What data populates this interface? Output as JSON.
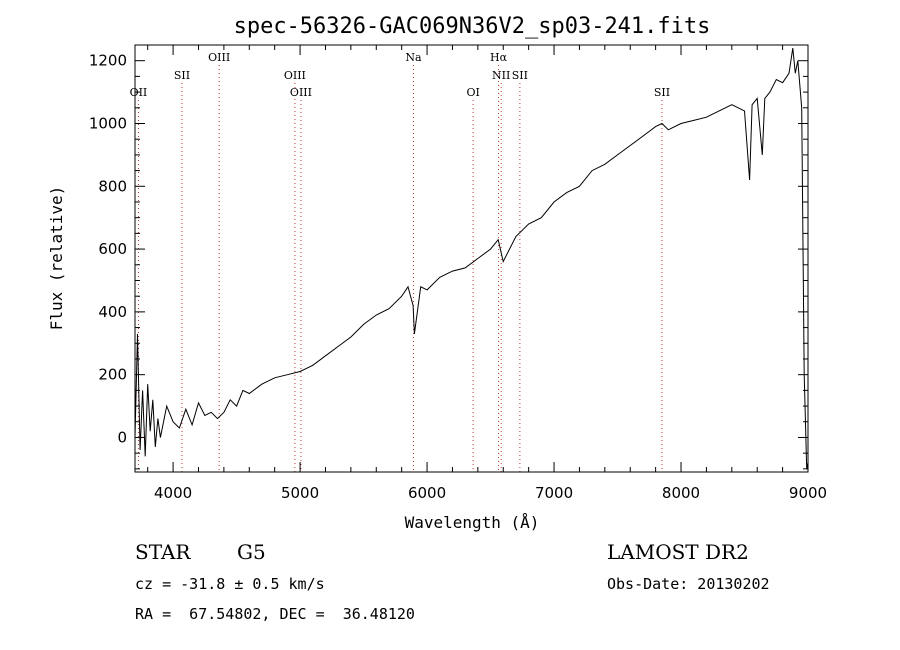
{
  "chart_data": {
    "type": "line",
    "title": "spec-56326-GAC069N36V2_sp03-241.fits",
    "xlabel": "Wavelength (Å)",
    "ylabel": "Flux (relative)",
    "xlim": [
      3700,
      9000
    ],
    "ylim": [
      -110,
      1250
    ],
    "x_ticks": [
      4000,
      5000,
      6000,
      7000,
      8000,
      9000
    ],
    "y_ticks": [
      0,
      200,
      400,
      600,
      800,
      1000,
      1200
    ],
    "grid": false,
    "series": [
      {
        "x": [
          3700,
          3720,
          3740,
          3760,
          3780,
          3800,
          3820,
          3840,
          3860,
          3880,
          3900,
          3950,
          4000,
          4050,
          4100,
          4150,
          4200,
          4250,
          4300,
          4350,
          4400,
          4450,
          4500,
          4550,
          4600,
          4700,
          4800,
          4900,
          5000,
          5100,
          5200,
          5300,
          5400,
          5500,
          5600,
          5700,
          5800,
          5850,
          5890,
          5900,
          5950,
          6000,
          6100,
          6200,
          6300,
          6400,
          6500,
          6560,
          6600,
          6700,
          6800,
          6900,
          7000,
          7100,
          7200,
          7300,
          7400,
          7500,
          7600,
          7700,
          7800,
          7850,
          7900,
          8000,
          8100,
          8200,
          8300,
          8400,
          8450,
          8500,
          8540,
          8560,
          8600,
          8640,
          8660,
          8700,
          8750,
          8800,
          8850,
          8880,
          8900,
          8920,
          8950,
          8970,
          8990,
          9000
        ],
        "y": [
          0,
          330,
          -40,
          150,
          -60,
          170,
          20,
          120,
          -30,
          60,
          0,
          100,
          50,
          30,
          90,
          40,
          110,
          70,
          80,
          60,
          80,
          120,
          100,
          150,
          140,
          170,
          190,
          200,
          210,
          230,
          260,
          290,
          320,
          360,
          390,
          410,
          450,
          480,
          420,
          330,
          480,
          470,
          510,
          530,
          540,
          570,
          600,
          630,
          560,
          640,
          680,
          700,
          750,
          780,
          800,
          850,
          870,
          900,
          930,
          960,
          990,
          1000,
          980,
          1000,
          1010,
          1020,
          1040,
          1060,
          1050,
          1040,
          820,
          1060,
          1080,
          900,
          1080,
          1100,
          1140,
          1130,
          1160,
          1240,
          1160,
          1200,
          1050,
          200,
          -100,
          -80
        ]
      }
    ],
    "emission_lines": [
      {
        "label": "OII",
        "x": 3727,
        "row": 1
      },
      {
        "label": "SII",
        "x": 4070,
        "row": 2
      },
      {
        "label": "OIII",
        "x": 4363,
        "row": 3
      },
      {
        "label": "OIII",
        "x": 4959,
        "row": 2
      },
      {
        "label": "OIII",
        "x": 5007,
        "row": 1
      },
      {
        "label": "Na",
        "x": 5893,
        "row": 3
      },
      {
        "label": "OI",
        "x": 6363,
        "row": 1
      },
      {
        "label": "Hα",
        "x": 6563,
        "row": 3
      },
      {
        "label": "NII",
        "x": 6584,
        "row": 2
      },
      {
        "label": "SII",
        "x": 6731,
        "row": 2
      },
      {
        "label": "SII",
        "x": 7850,
        "row": 1
      }
    ]
  },
  "footer": {
    "object_type": "STAR",
    "subclass": "G5",
    "cz": "cz = -31.8 ± 0.5 km/s",
    "coords": "RA =  67.54802, DEC =  36.48120",
    "survey": "LAMOST DR2",
    "obs_date": "Obs-Date: 20130202"
  }
}
